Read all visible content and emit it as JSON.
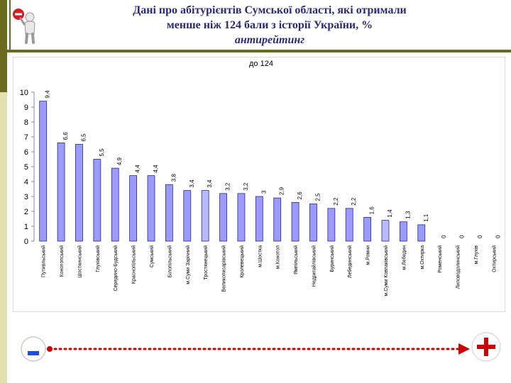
{
  "header": {
    "title_line1": "Дані про абітурієнтів Сумської області, які отримали",
    "title_line2": "менше ніж 124 бали з історії України, %",
    "title_line3": "антирейтинг"
  },
  "icons": {
    "logo": "no-entry-figure-icon",
    "minus": "minus-icon",
    "plus": "plus-icon"
  },
  "colors": {
    "bar": "#9a9aff",
    "bar_highlight": "#b9b9ff",
    "bar_border": "#2a2a8a",
    "arrow": "#cc0000",
    "accent": "#6b6b1f"
  },
  "chart_data": {
    "type": "bar",
    "title": "до 124",
    "ylim": [
      0,
      10
    ],
    "yticks": [
      0,
      1,
      2,
      3,
      4,
      5,
      6,
      7,
      8,
      9,
      10
    ],
    "grid": false,
    "categories": [
      "Путивльський",
      "Конотопський",
      "Шосткинський",
      "Глухівський",
      "Середино-Будський",
      "Краснопільський",
      "Сумський",
      "Білопільський",
      "м.Суми Зарічний",
      "Тростянецький",
      "Великописарівський",
      "Кролевецький",
      "м.Шостка",
      "м.Конотоп",
      "Ямпільський",
      "Недригайлівський",
      "Буринський",
      "Лебединський",
      "м.Ромни",
      "м.Суми Ковпаківський",
      "м.Лебедин",
      "м.Охтирка",
      "Роменський",
      "Липоводолинський",
      "м.Глухів",
      "Охтирський"
    ],
    "values": [
      9.4,
      6.6,
      6.5,
      5.5,
      4.9,
      4.4,
      4.4,
      3.8,
      3.4,
      3.4,
      3.2,
      3.2,
      3,
      2.9,
      2.6,
      2.5,
      2.2,
      2.2,
      1.6,
      1.4,
      1.3,
      1.1,
      0,
      0,
      0,
      0
    ],
    "highlight": [
      9,
      19
    ]
  }
}
